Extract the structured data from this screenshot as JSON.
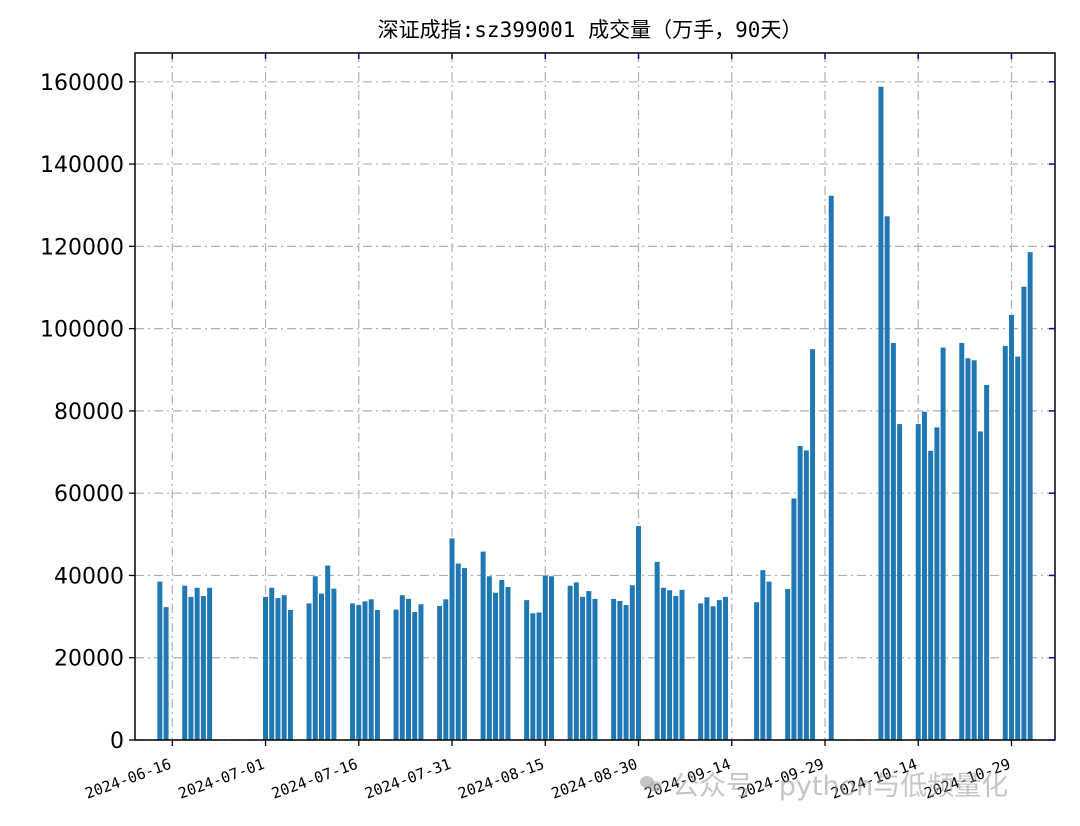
{
  "chart_data": {
    "type": "bar",
    "title": "深证成指:sz399001 成交量（万手，90天）",
    "xlabel": "",
    "ylabel": "",
    "ylim": [
      0,
      167000
    ],
    "yticks": [
      0,
      20000,
      40000,
      60000,
      80000,
      100000,
      120000,
      140000,
      160000
    ],
    "xlim": [
      "2024-06-10",
      "2024-11-05"
    ],
    "xticks": [
      "2024-06-16",
      "2024-07-01",
      "2024-07-16",
      "2024-07-31",
      "2024-08-15",
      "2024-08-30",
      "2024-09-14",
      "2024-09-29",
      "2024-10-14",
      "2024-10-29"
    ],
    "grid": true,
    "bar_color": "#1f77b4",
    "series": [
      {
        "x": [
          "2024-06-14",
          "2024-06-15",
          "2024-06-18",
          "2024-06-19",
          "2024-06-20",
          "2024-06-21",
          "2024-06-22",
          "2024-07-01",
          "2024-07-02",
          "2024-07-03",
          "2024-07-04",
          "2024-07-05",
          "2024-07-08",
          "2024-07-09",
          "2024-07-10",
          "2024-07-11",
          "2024-07-12",
          "2024-07-15",
          "2024-07-16",
          "2024-07-17",
          "2024-07-18",
          "2024-07-19",
          "2024-07-22",
          "2024-07-23",
          "2024-07-24",
          "2024-07-25",
          "2024-07-26",
          "2024-07-29",
          "2024-07-30",
          "2024-07-31",
          "2024-08-01",
          "2024-08-02",
          "2024-08-05",
          "2024-08-06",
          "2024-08-07",
          "2024-08-08",
          "2024-08-09",
          "2024-08-12",
          "2024-08-13",
          "2024-08-14",
          "2024-08-15",
          "2024-08-16",
          "2024-08-19",
          "2024-08-20",
          "2024-08-21",
          "2024-08-22",
          "2024-08-23",
          "2024-08-26",
          "2024-08-27",
          "2024-08-28",
          "2024-08-29",
          "2024-08-30",
          "2024-09-02",
          "2024-09-03",
          "2024-09-04",
          "2024-09-05",
          "2024-09-06",
          "2024-09-09",
          "2024-09-10",
          "2024-09-11",
          "2024-09-12",
          "2024-09-13",
          "2024-09-18",
          "2024-09-19",
          "2024-09-20",
          "2024-09-23",
          "2024-09-24",
          "2024-09-25",
          "2024-09-26",
          "2024-09-27",
          "2024-09-30",
          "2024-10-08",
          "2024-10-09",
          "2024-10-10",
          "2024-10-11",
          "2024-10-14",
          "2024-10-15",
          "2024-10-16",
          "2024-10-17",
          "2024-10-18",
          "2024-10-21",
          "2024-10-22",
          "2024-10-23",
          "2024-10-24",
          "2024-10-25",
          "2024-10-28",
          "2024-10-29",
          "2024-10-30",
          "2024-10-31",
          "2024-11-01"
        ],
        "values": [
          38500,
          32300,
          37500,
          34800,
          37000,
          35000,
          37000,
          34800,
          37000,
          34500,
          35200,
          31600,
          33200,
          39800,
          35600,
          42400,
          36800,
          33200,
          32800,
          33700,
          34200,
          31600,
          31700,
          35200,
          34300,
          31100,
          33000,
          32600,
          34200,
          49000,
          42900,
          41800,
          45800,
          39800,
          35800,
          38900,
          37200,
          34000,
          30800,
          31000,
          40000,
          39800,
          37500,
          38300,
          34800,
          36200,
          34300,
          34300,
          33800,
          32800,
          37600,
          52000,
          43300,
          37000,
          36400,
          35000,
          36500,
          33200,
          34700,
          32500,
          34000,
          34800,
          33500,
          41300,
          38500,
          36700,
          58700,
          71500,
          70400,
          95000,
          132300,
          158800,
          127300,
          96500,
          76800,
          76800,
          79800,
          70300,
          76000,
          95400,
          96500,
          92800,
          92300,
          75000,
          86300,
          95800,
          103300,
          93200,
          110200,
          118600
        ]
      }
    ]
  },
  "watermark": {
    "text": "公众号 · python与低频量化",
    "icon": "wechat-icon"
  }
}
